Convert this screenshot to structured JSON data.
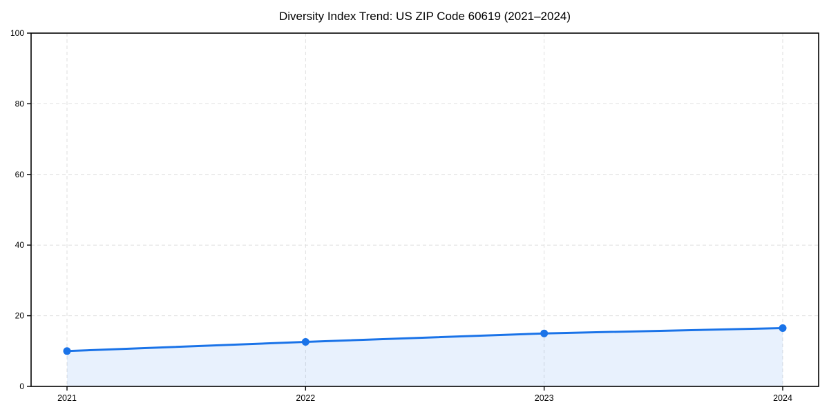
{
  "chart_data": {
    "type": "area",
    "title": "Diversity Index Trend: US ZIP Code 60619 (2021–2024)",
    "categories": [
      "2021",
      "2022",
      "2023",
      "2024"
    ],
    "series": [
      {
        "name": "Diversity Index",
        "values": [
          10,
          12.6,
          15,
          16.5
        ]
      }
    ],
    "xlabel": "",
    "ylabel": "",
    "ylim": [
      0,
      100
    ],
    "yticks": [
      0,
      20,
      40,
      60,
      80,
      100
    ],
    "grid": true,
    "grid_style": "dashed",
    "legend_position": "none",
    "colors": {
      "line": "#1a73e8",
      "marker": "#1a73e8",
      "area_fill": "rgba(26,115,232,0.10)",
      "gridline": "#dedede",
      "axis": "#000000",
      "background": "#ffffff"
    }
  }
}
